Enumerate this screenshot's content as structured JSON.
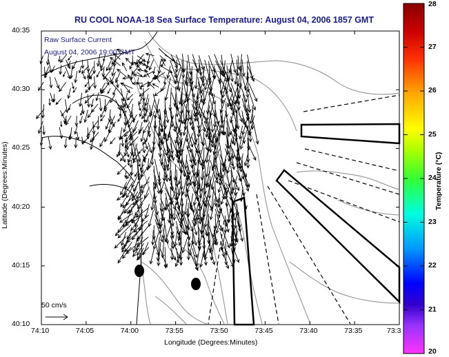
{
  "title": "RU COOL  NOAA-18  Sea Surface Temperature:  August 04, 2006 1857 GMT",
  "annotation": {
    "line1": "Raw Surface Current",
    "line2": "August 04, 2006 19:00 GMT"
  },
  "scale_label": "50 cm/s",
  "axes": {
    "xlabel": "Longitude (Degrees:Minutes)",
    "ylabel": "Latitude (Degrees:Minutes)",
    "xticks": [
      "74:10",
      "74:05",
      "74:00",
      "73:55",
      "73:50",
      "73:45",
      "73:40",
      "73:35",
      "73:3"
    ],
    "yticks": [
      "40:35",
      "40:30",
      "40:25",
      "40:20",
      "40:15",
      "40:10"
    ]
  },
  "colorbar": {
    "label": "Temperature (°C)",
    "ticks": [
      "28",
      "27",
      "26",
      "25",
      "24",
      "23",
      "22",
      "21",
      "20"
    ],
    "range": [
      20,
      28
    ],
    "colors": [
      "#ff33ff",
      "#6600cc",
      "#0000ff",
      "#00aaff",
      "#00ffcc",
      "#33ff33",
      "#ccff00",
      "#ffff00",
      "#ff9900",
      "#ff3300",
      "#cc0000",
      "#880000"
    ]
  },
  "map": {
    "background": "#ffffff",
    "coastline_color": "#000000",
    "bathymetry_color": "#888888",
    "arrow_color": "#000000"
  }
}
